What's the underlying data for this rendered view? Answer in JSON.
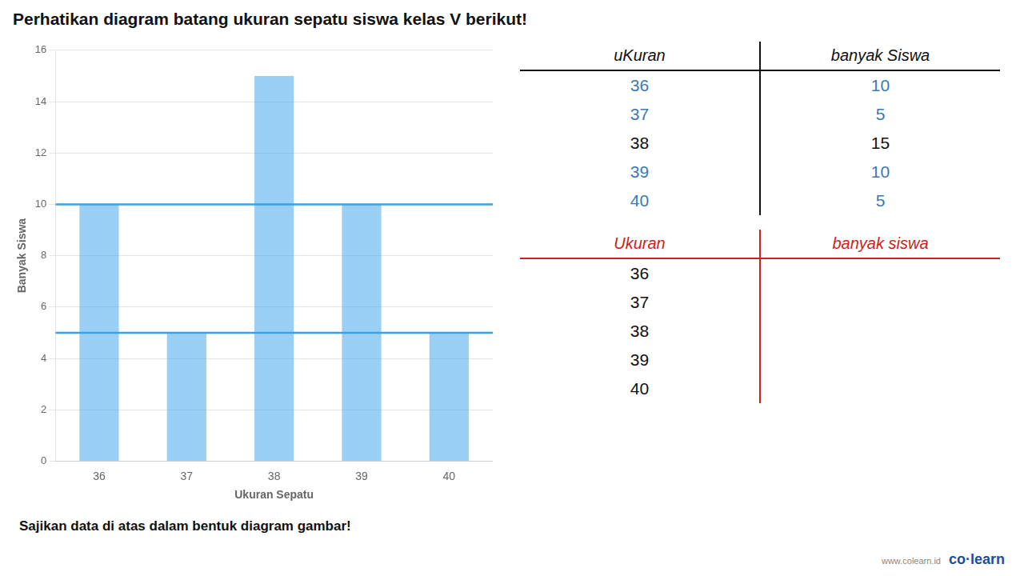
{
  "chart_data": {
    "type": "bar",
    "title": "Perhatikan diagram batang ukuran sepatu siswa kelas V berikut!",
    "subtitle": "Sajikan data di atas dalam bentuk diagram gambar!",
    "x_label": "Ukuran Sepatu",
    "y_label": "Banyak Siswa",
    "categories": [
      "36",
      "37",
      "38",
      "39",
      "40"
    ],
    "values": [
      10,
      5,
      15,
      10,
      5
    ],
    "ylim": [
      0,
      16
    ],
    "yticks": [
      0,
      2,
      4,
      6,
      8,
      10,
      12,
      14,
      16
    ],
    "grid": true,
    "reference_lines": [
      10,
      5
    ],
    "tables": [
      {
        "headers": [
          "uKuran",
          "banyak Siswa"
        ],
        "rows": [
          [
            "36",
            "10"
          ],
          [
            "37",
            "5"
          ],
          [
            "38",
            "15"
          ],
          [
            "39",
            "10"
          ],
          [
            "40",
            "5"
          ]
        ],
        "colors": [
          "#3a7ab5",
          "#3a7ab5",
          "#111111",
          "#3a7ab5",
          "#3a7ab5"
        ]
      },
      {
        "headers": [
          "Ukuran",
          "banyak siswa"
        ],
        "header_color": "#cc2222",
        "rows": [
          [
            "36"
          ],
          [
            "37"
          ],
          [
            "38"
          ],
          [
            "39"
          ],
          [
            "40"
          ]
        ]
      }
    ],
    "annotations": [
      "co·learn",
      "www.colearn.id"
    ]
  }
}
